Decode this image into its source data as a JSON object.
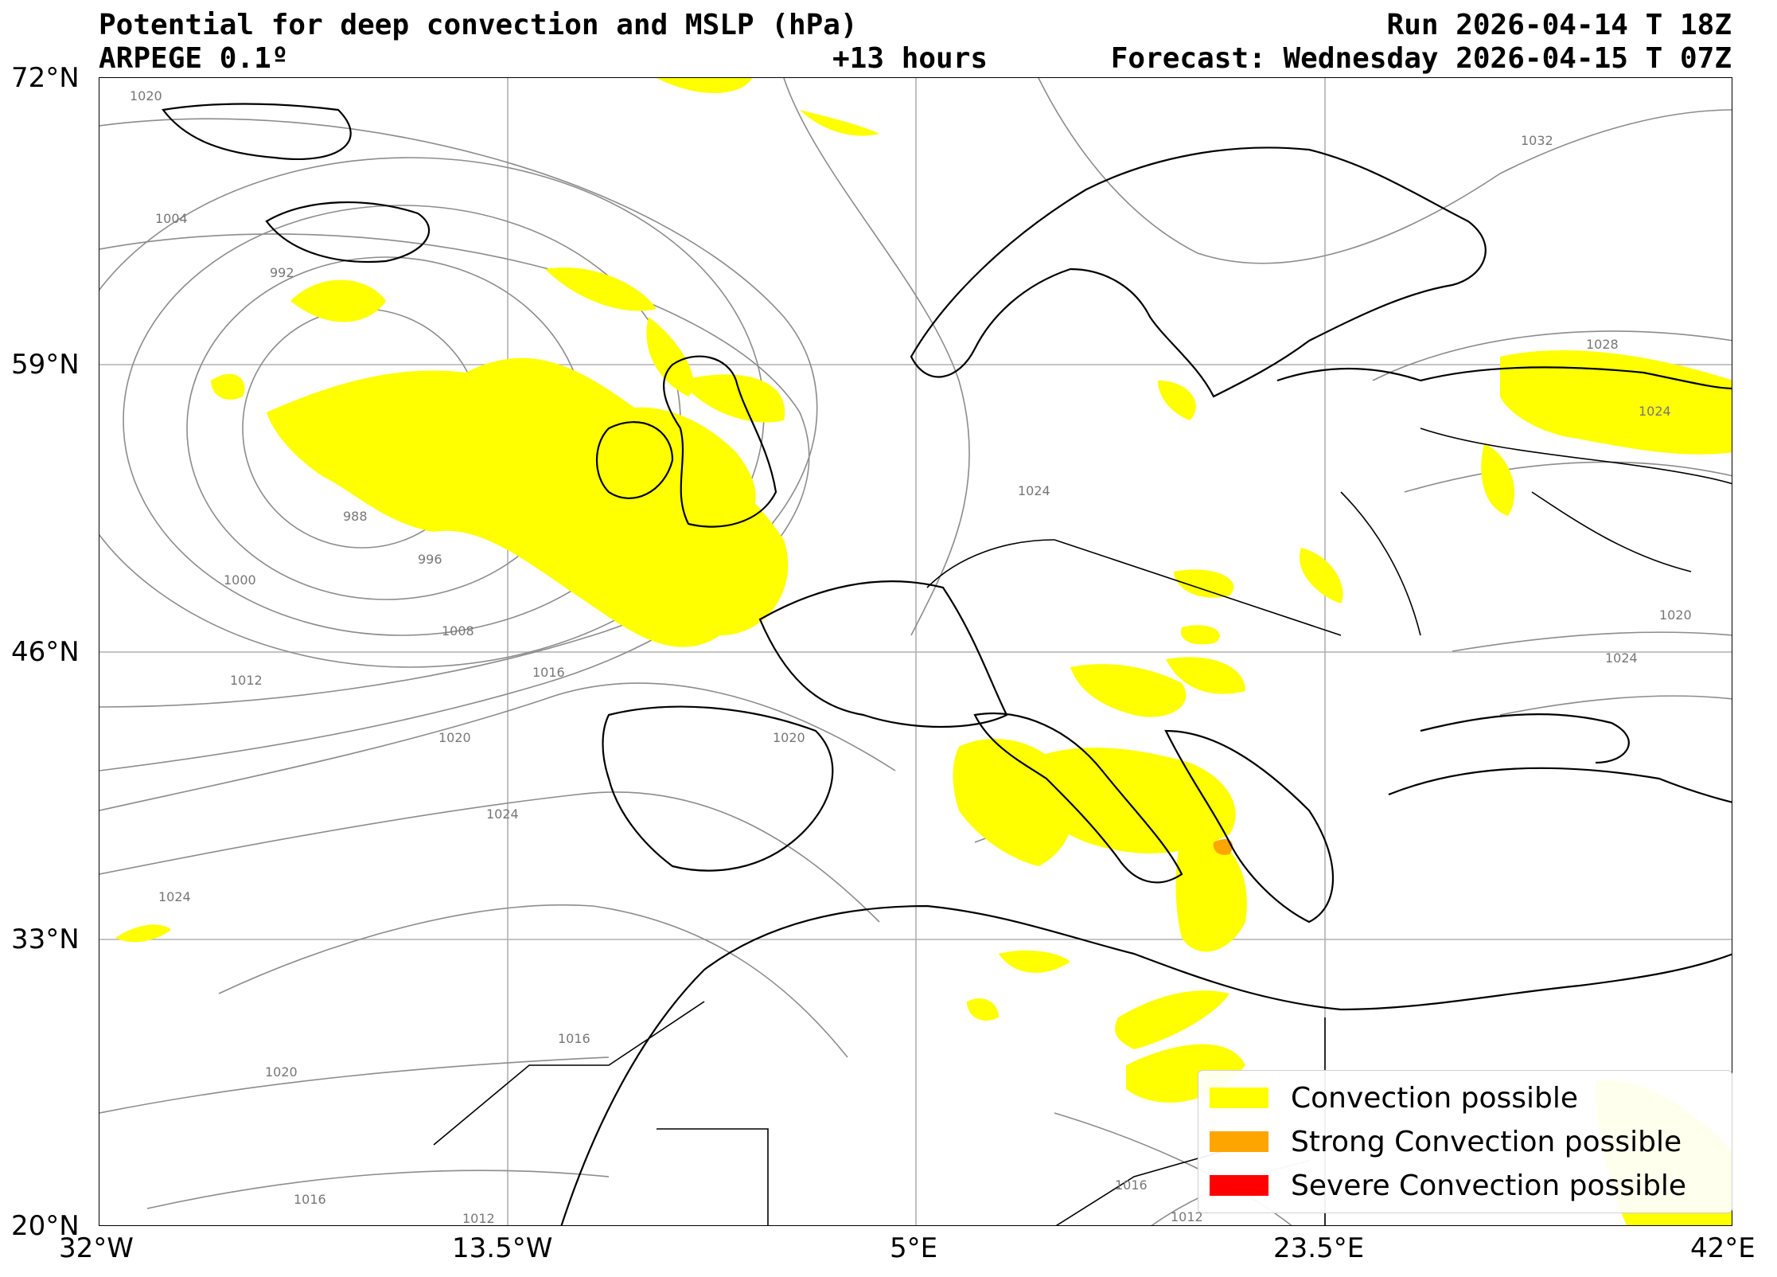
{
  "header": {
    "title": "Potential for deep convection and MSLP (hPa)",
    "model": "ARPEGE 0.1º",
    "lead": "+13 hours",
    "run": "Run 2026-04-14 T 18Z",
    "forecast": "Forecast: Wednesday 2026-04-15 T 07Z"
  },
  "axes": {
    "lat_ticks": [
      "72°N",
      "59°N",
      "46°N",
      "33°N",
      "20°N"
    ],
    "lon_ticks": [
      "32°W",
      "13.5°W",
      "5°E",
      "23.5°E",
      "42°E"
    ],
    "lat_values": [
      72,
      59,
      46,
      33,
      20
    ],
    "lon_values": [
      -32,
      -13.5,
      5,
      23.5,
      42
    ],
    "lon_range": [
      -32,
      42
    ],
    "lat_range": [
      20,
      72
    ],
    "grid": true
  },
  "isobar_labels": [
    "1020",
    "1004",
    "992",
    "988",
    "996",
    "1000",
    "1008",
    "1012",
    "1016",
    "1020",
    "1024",
    "1024",
    "1016",
    "1020",
    "1016",
    "1012",
    "1020",
    "1024",
    "1032",
    "1028",
    "1024",
    "1020",
    "1024",
    "1012",
    "1016"
  ],
  "legend": {
    "items": [
      {
        "label": "Convection possible",
        "color": "#ffff00"
      },
      {
        "label": "Strong Convection possible",
        "color": "#ffa500"
      },
      {
        "label": "Severe Convection possible",
        "color": "#ff0000"
      }
    ]
  },
  "colors": {
    "convection": "#ffff00",
    "strong": "#ffa500",
    "severe": "#ff0000",
    "isobar": "#8c8c8c",
    "coast": "#000000",
    "grid": "#b0b0b0"
  }
}
